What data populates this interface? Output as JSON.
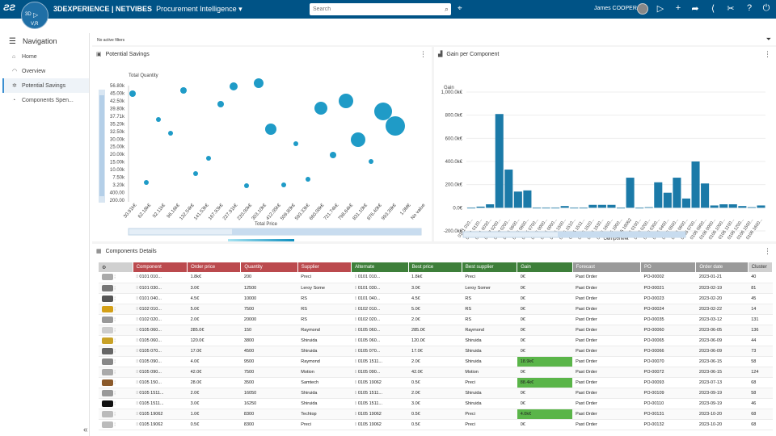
{
  "header": {
    "compass_label": "V,R",
    "compass_n": "3D",
    "brand_main": "3DEXPERIENCE | NETVIBES",
    "app_name": "Procurement Intelligence",
    "search_placeholder": "Search",
    "user_name": "James COOPER",
    "bg": "#005386"
  },
  "nav": {
    "title": "Navigation",
    "items": [
      {
        "label": "Home",
        "icon": "home-icon"
      },
      {
        "label": "Overview",
        "icon": "gauge-icon"
      },
      {
        "label": "Potential Savings",
        "icon": "sparkle-icon"
      },
      {
        "label": "Components Spen...",
        "icon": "pie-icon"
      }
    ]
  },
  "filters": {
    "text": "No active filters"
  },
  "scatter": {
    "title": "Potential Savings",
    "ylabel": "Total Quantity",
    "xlabel": "Total Price",
    "yticks": [
      "56.80k",
      "45.00k",
      "42.50k",
      "39.80k",
      "37.71k",
      "35.20k",
      "32.50k",
      "30.00k",
      "25.00k",
      "20.00k",
      "15.00k",
      "10.00k",
      "7.50k",
      "3.20k",
      "400.00",
      "200.00"
    ],
    "xticks": [
      "30.91k€",
      "62.18k€",
      "92.11k€",
      "96.16k€",
      "132.54k€",
      "141.53k€",
      "167.93k€",
      "227.91k€",
      "220.00k€",
      "303.10k€",
      "412.05k€",
      "509.80k€",
      "593.33k€",
      "660.08k€",
      "721.74k€",
      "798.64k€",
      "831.10k€",
      "876.40k€",
      "993.39k€",
      "1.0M€",
      "No value"
    ],
    "legend_min": "0",
    "legend_max": "10"
  },
  "gain": {
    "title": "Gain per Component",
    "ylabel": "Gain",
    "xlabel": "Component",
    "yticks": [
      "1,000.0k€",
      "800.0k€",
      "600.0k€",
      "400.0k€",
      "200.0k€",
      "0.0€",
      "-200.0k€"
    ],
    "ymin": -200,
    "ymax": 1000,
    "values": [
      0,
      10,
      30,
      810,
      330,
      140,
      150,
      0,
      0,
      0,
      15,
      0,
      0,
      25,
      25,
      25,
      0,
      260,
      0,
      5,
      220,
      130,
      260,
      80,
      400,
      210,
      20,
      30,
      30,
      15,
      5,
      20
    ],
    "xticks": [
      "0101 010...",
      "0101 0120...",
      "0101 0030...",
      "0102 0200...",
      "0102 0200...",
      "0105 0600...",
      "0105 0600...",
      "0105 0700...",
      "0105 0900...",
      "0105 0900...",
      "0105 1500...",
      "0105 1510...",
      "0105 1511...",
      "0105 1520...",
      "0105 1530...",
      "0105 1600...",
      "0105 1900...",
      "0105 19062",
      "0106 0100...",
      "0106 0200...",
      "0106 0300...",
      "0106 0400...",
      "0106 0500...",
      "0106 0600...",
      "0106 0700...",
      "0106 0800...",
      "0106 0900...",
      "0106 1000...",
      "0106 1100...",
      "0106 1200...",
      "0106 1500...",
      "0106 1600..."
    ],
    "bar_color": "#1b7aa8"
  },
  "table": {
    "title": "Components Details",
    "columns": [
      "",
      "Component",
      "Order price",
      "Quantity",
      "Supplier",
      "Alternate",
      "Best price",
      "Best supplier",
      "Gain",
      "Forecast",
      "PO",
      "Order date",
      "Cluster"
    ],
    "rows": [
      {
        "component": "0101 010...",
        "order_price": "1.8k€",
        "quantity": "200",
        "supplier": "Preci",
        "alternate": "0101 010...",
        "best_price": "1.8k€",
        "best_supplier": "Preci",
        "gain": "0€",
        "forecast": "Past Order",
        "po": "PO-00002",
        "order_date": "2023-01-21",
        "cluster": "40",
        "hi": false,
        "thumb": "#aaa"
      },
      {
        "component": "0101 030...",
        "order_price": "3.0€",
        "quantity": "12500",
        "supplier": "Leroy Some",
        "alternate": "0101 030...",
        "best_price": "3.0€",
        "best_supplier": "Leroy Somer",
        "gain": "0€",
        "forecast": "Past Order",
        "po": "PO-00021",
        "order_date": "2023-02-19",
        "cluster": "81",
        "hi": false,
        "thumb": "#777"
      },
      {
        "component": "0101 040...",
        "order_price": "4.5€",
        "quantity": "10000",
        "supplier": "RS",
        "alternate": "0101 040...",
        "best_price": "4.5€",
        "best_supplier": "RS",
        "gain": "0€",
        "forecast": "Past Order",
        "po": "PO-00023",
        "order_date": "2023-02-20",
        "cluster": "45",
        "hi": false,
        "thumb": "#555"
      },
      {
        "component": "0102 010...",
        "order_price": "5.0€",
        "quantity": "7500",
        "supplier": "RS",
        "alternate": "0102 010...",
        "best_price": "5.0€",
        "best_supplier": "RS",
        "gain": "0€",
        "forecast": "Past Order",
        "po": "PO-00024",
        "order_date": "2023-02-22",
        "cluster": "14",
        "hi": false,
        "thumb": "#d4a017"
      },
      {
        "component": "0102 020...",
        "order_price": "2.0€",
        "quantity": "20000",
        "supplier": "RS",
        "alternate": "0102 020...",
        "best_price": "2.0€",
        "best_supplier": "RS",
        "gain": "0€",
        "forecast": "Past Order",
        "po": "PO-00035",
        "order_date": "2023-03-12",
        "cluster": "131",
        "hi": false,
        "thumb": "#999"
      },
      {
        "component": "0105 060...",
        "order_price": "285.0€",
        "quantity": "150",
        "supplier": "Raymond",
        "alternate": "0105 060...",
        "best_price": "285.0€",
        "best_supplier": "Raymond",
        "gain": "0€",
        "forecast": "Past Order",
        "po": "PO-00060",
        "order_date": "2023-06-05",
        "cluster": "136",
        "hi": false,
        "thumb": "#ccc"
      },
      {
        "component": "0105 060...",
        "order_price": "120.0€",
        "quantity": "3800",
        "supplier": "Shiruida",
        "alternate": "0105 060...",
        "best_price": "120.0€",
        "best_supplier": "Shiruida",
        "gain": "0€",
        "forecast": "Past Order",
        "po": "PO-00065",
        "order_date": "2023-06-09",
        "cluster": "44",
        "hi": false,
        "thumb": "#c9a227"
      },
      {
        "component": "0105 070...",
        "order_price": "17.0€",
        "quantity": "4500",
        "supplier": "Shiruida",
        "alternate": "0105 070...",
        "best_price": "17.0€",
        "best_supplier": "Shiruida",
        "gain": "0€",
        "forecast": "Past Order",
        "po": "PO-00066",
        "order_date": "2023-06-09",
        "cluster": "73",
        "hi": false,
        "thumb": "#666"
      },
      {
        "component": "0105 090...",
        "order_price": "4.0€",
        "quantity": "9500",
        "supplier": "Raymond",
        "alternate": "0105 1511...",
        "best_price": "2.0€",
        "best_supplier": "Shiruida",
        "gain": "18.9k€",
        "forecast": "Past Order",
        "po": "PO-00070",
        "order_date": "2023-06-15",
        "cluster": "58",
        "hi": true,
        "thumb": "#888"
      },
      {
        "component": "0105 090...",
        "order_price": "42.0€",
        "quantity": "7500",
        "supplier": "Motion",
        "alternate": "0105 090...",
        "best_price": "42.0€",
        "best_supplier": "Motion",
        "gain": "0€",
        "forecast": "Past Order",
        "po": "PO-00072",
        "order_date": "2023-06-15",
        "cluster": "124",
        "hi": false,
        "thumb": "#aaa"
      },
      {
        "component": "0105 150...",
        "order_price": "28.0€",
        "quantity": "3500",
        "supplier": "Samtech",
        "alternate": "0105 19062",
        "best_price": "0.5€",
        "best_supplier": "Preci",
        "gain": "88.4k€",
        "forecast": "Past Order",
        "po": "PO-00093",
        "order_date": "2023-07-13",
        "cluster": "68",
        "hi": true,
        "thumb": "#8b5a2b"
      },
      {
        "component": "0105 1511...",
        "order_price": "2.0€",
        "quantity": "16050",
        "supplier": "Shiruida",
        "alternate": "0105 1511...",
        "best_price": "2.0€",
        "best_supplier": "Shiruida",
        "gain": "0€",
        "forecast": "Past Order",
        "po": "PO-00109",
        "order_date": "2023-09-19",
        "cluster": "58",
        "hi": false,
        "thumb": "#999"
      },
      {
        "component": "0105 1511...",
        "order_price": "3.0€",
        "quantity": "16250",
        "supplier": "Shiruida",
        "alternate": "0105 1511...",
        "best_price": "3.0€",
        "best_supplier": "Shiruida",
        "gain": "0€",
        "forecast": "Past Order",
        "po": "PO-00110",
        "order_date": "2023-09-19",
        "cluster": "46",
        "hi": false,
        "thumb": "#111"
      },
      {
        "component": "0105 19062",
        "order_price": "1.0€",
        "quantity": "8300",
        "supplier": "Techtop",
        "alternate": "0105 19062",
        "best_price": "0.5€",
        "best_supplier": "Preci",
        "gain": "4.0k€",
        "forecast": "Past Order",
        "po": "PO-00131",
        "order_date": "2023-10-20",
        "cluster": "68",
        "hi": true,
        "thumb": "#bbb"
      },
      {
        "component": "0105 19062",
        "order_price": "0.5€",
        "quantity": "8300",
        "supplier": "Preci",
        "alternate": "0105 19062",
        "best_price": "0.5€",
        "best_supplier": "Preci",
        "gain": "0€",
        "forecast": "Past Order",
        "po": "PO-00132",
        "order_date": "2023-10-20",
        "cluster": "68",
        "hi": false,
        "thumb": "#bbb"
      }
    ]
  }
}
